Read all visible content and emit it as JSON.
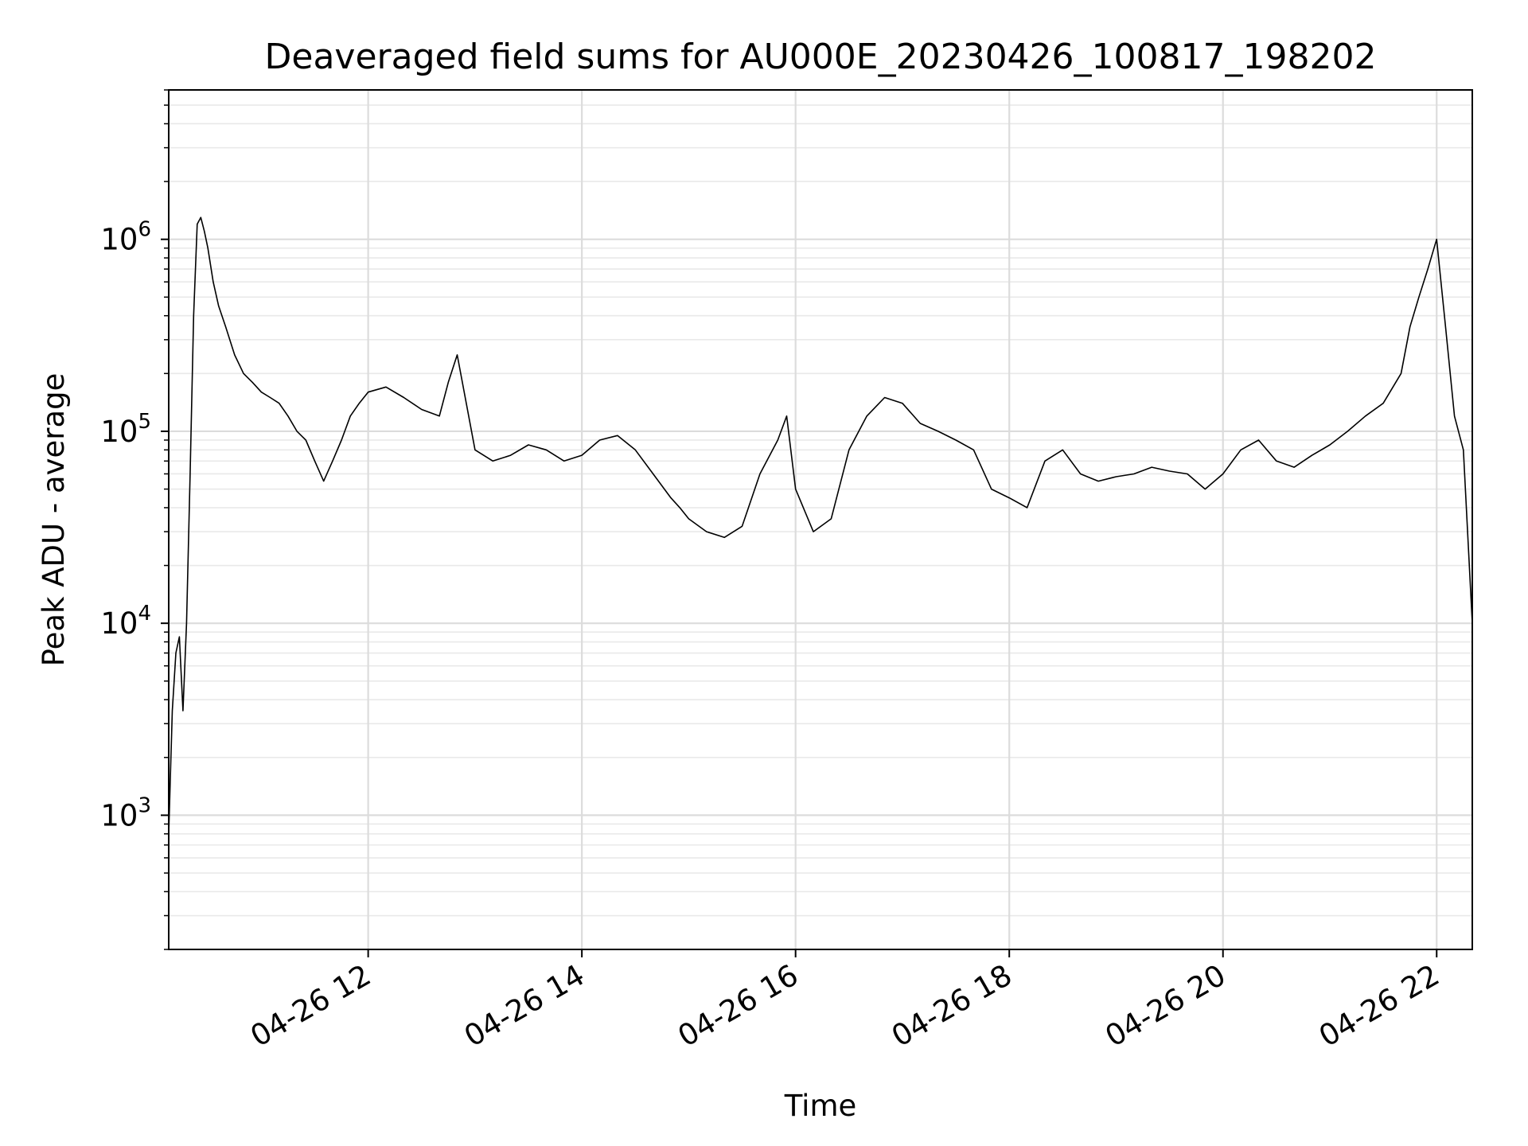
{
  "chart_data": {
    "type": "line",
    "title": "Deaveraged field sums for AU000E_20230426_100817_198202",
    "xlabel": "Time",
    "ylabel": "Peak ADU - average",
    "yscale": "log",
    "ylim": [
      200,
      6000000
    ],
    "xlim": [
      "2023-04-26 10:08",
      "2023-04-26 22:20"
    ],
    "x_ticks": [
      {
        "t": "2023-04-26 12:00",
        "label": "04-26 12"
      },
      {
        "t": "2023-04-26 14:00",
        "label": "04-26 14"
      },
      {
        "t": "2023-04-26 16:00",
        "label": "04-26 16"
      },
      {
        "t": "2023-04-26 18:00",
        "label": "04-26 18"
      },
      {
        "t": "2023-04-26 20:00",
        "label": "04-26 20"
      },
      {
        "t": "2023-04-26 22:00",
        "label": "04-26 22"
      }
    ],
    "y_ticks": [
      {
        "value": 1000,
        "base": "10",
        "exp": "3"
      },
      {
        "value": 10000,
        "base": "10",
        "exp": "4"
      },
      {
        "value": 100000,
        "base": "10",
        "exp": "5"
      },
      {
        "value": 1000000,
        "base": "10",
        "exp": "6"
      }
    ],
    "grid": true,
    "line_color": "#000000",
    "series": [
      {
        "x": [
          "2023-04-26 10:08",
          "2023-04-26 10:10",
          "2023-04-26 10:12",
          "2023-04-26 10:14",
          "2023-04-26 10:16",
          "2023-04-26 10:18",
          "2023-04-26 10:20",
          "2023-04-26 10:22",
          "2023-04-26 10:24",
          "2023-04-26 10:26",
          "2023-04-26 10:28",
          "2023-04-26 10:30",
          "2023-04-26 10:33",
          "2023-04-26 10:36",
          "2023-04-26 10:40",
          "2023-04-26 10:45",
          "2023-04-26 10:50",
          "2023-04-26 10:55",
          "2023-04-26 11:00",
          "2023-04-26 11:05",
          "2023-04-26 11:10",
          "2023-04-26 11:15",
          "2023-04-26 11:20",
          "2023-04-26 11:25",
          "2023-04-26 11:30",
          "2023-04-26 11:35",
          "2023-04-26 11:40",
          "2023-04-26 11:45",
          "2023-04-26 11:50",
          "2023-04-26 11:55",
          "2023-04-26 12:00",
          "2023-04-26 12:10",
          "2023-04-26 12:20",
          "2023-04-26 12:30",
          "2023-04-26 12:40",
          "2023-04-26 12:45",
          "2023-04-26 12:50",
          "2023-04-26 13:00",
          "2023-04-26 13:10",
          "2023-04-26 13:20",
          "2023-04-26 13:30",
          "2023-04-26 13:40",
          "2023-04-26 13:50",
          "2023-04-26 14:00",
          "2023-04-26 14:10",
          "2023-04-26 14:20",
          "2023-04-26 14:30",
          "2023-04-26 14:40",
          "2023-04-26 14:50",
          "2023-04-26 14:55",
          "2023-04-26 15:00",
          "2023-04-26 15:10",
          "2023-04-26 15:20",
          "2023-04-26 15:30",
          "2023-04-26 15:40",
          "2023-04-26 15:50",
          "2023-04-26 15:55",
          "2023-04-26 16:00",
          "2023-04-26 16:10",
          "2023-04-26 16:20",
          "2023-04-26 16:30",
          "2023-04-26 16:40",
          "2023-04-26 16:50",
          "2023-04-26 17:00",
          "2023-04-26 17:10",
          "2023-04-26 17:20",
          "2023-04-26 17:30",
          "2023-04-26 17:40",
          "2023-04-26 17:50",
          "2023-04-26 18:00",
          "2023-04-26 18:10",
          "2023-04-26 18:20",
          "2023-04-26 18:30",
          "2023-04-26 18:40",
          "2023-04-26 18:50",
          "2023-04-26 19:00",
          "2023-04-26 19:10",
          "2023-04-26 19:20",
          "2023-04-26 19:30",
          "2023-04-26 19:40",
          "2023-04-26 19:50",
          "2023-04-26 20:00",
          "2023-04-26 20:10",
          "2023-04-26 20:20",
          "2023-04-26 20:30",
          "2023-04-26 20:40",
          "2023-04-26 20:50",
          "2023-04-26 21:00",
          "2023-04-26 21:10",
          "2023-04-26 21:20",
          "2023-04-26 21:30",
          "2023-04-26 21:40",
          "2023-04-26 21:45",
          "2023-04-26 21:50",
          "2023-04-26 21:55",
          "2023-04-26 22:00",
          "2023-04-26 22:05",
          "2023-04-26 22:10",
          "2023-04-26 22:15",
          "2023-04-26 22:20"
        ],
        "y": [
          800,
          3500,
          7000,
          8500,
          3500,
          10000,
          60000,
          400000,
          1200000,
          1300000,
          1100000,
          900000,
          600000,
          450000,
          350000,
          250000,
          200000,
          180000,
          160000,
          150000,
          140000,
          120000,
          100000,
          90000,
          70000,
          55000,
          70000,
          90000,
          120000,
          140000,
          160000,
          170000,
          150000,
          130000,
          120000,
          180000,
          250000,
          80000,
          70000,
          75000,
          85000,
          80000,
          70000,
          75000,
          90000,
          95000,
          80000,
          60000,
          45000,
          40000,
          35000,
          30000,
          28000,
          32000,
          60000,
          90000,
          120000,
          50000,
          30000,
          35000,
          80000,
          120000,
          150000,
          140000,
          110000,
          100000,
          90000,
          80000,
          50000,
          45000,
          40000,
          70000,
          80000,
          60000,
          55000,
          58000,
          60000,
          65000,
          62000,
          60000,
          50000,
          60000,
          80000,
          90000,
          70000,
          65000,
          75000,
          85000,
          100000,
          120000,
          140000,
          200000,
          350000,
          500000,
          700000,
          1000000,
          350000,
          120000,
          80000,
          10000
        ]
      }
    ]
  }
}
